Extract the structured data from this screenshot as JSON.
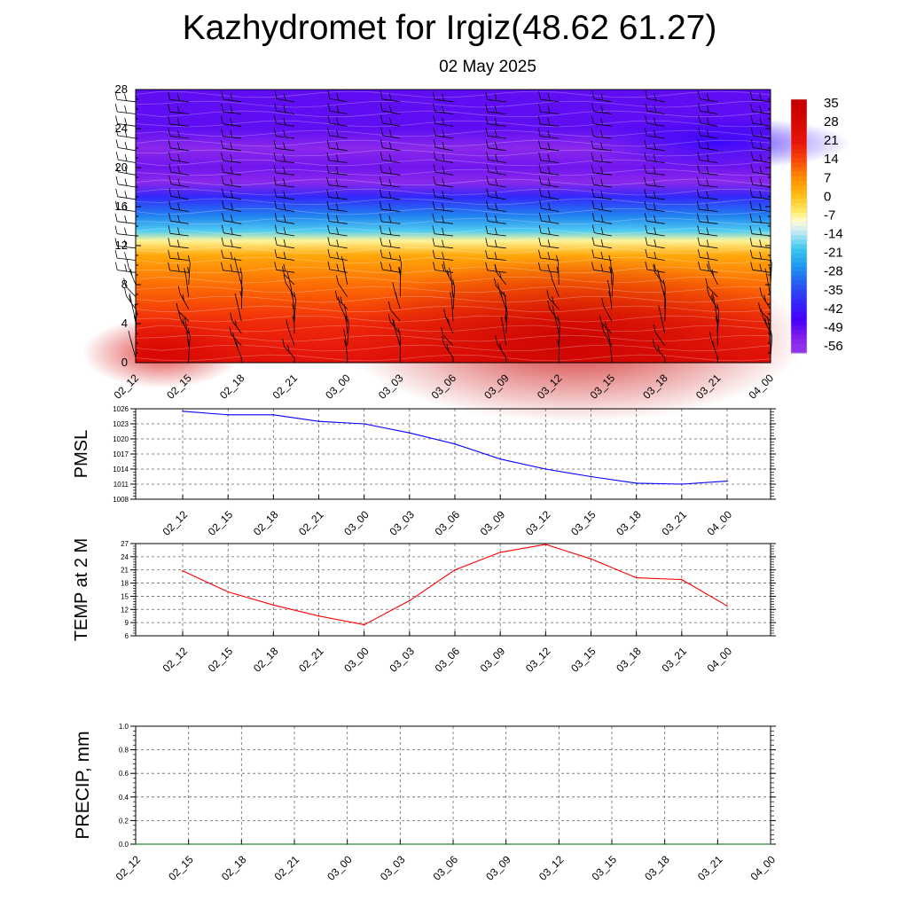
{
  "title": "Kazhydromet for Irgiz(48.62 61.27)",
  "date": "02 May 2025",
  "chart_data": [
    {
      "type": "heatmap",
      "title": "",
      "x_categories": [
        "02_12",
        "02_15",
        "02_18",
        "02_21",
        "03_00",
        "03_03",
        "03_06",
        "03_09",
        "03_12",
        "03_15",
        "03_18",
        "03_21",
        "04_00"
      ],
      "y_ticks": [
        0,
        4,
        8,
        12,
        16,
        20,
        24,
        28
      ],
      "ylim": [
        0,
        28
      ],
      "colorbar_labels": [
        "35",
        "28",
        "21",
        "14",
        "7",
        "0",
        "-7",
        "-14",
        "-21",
        "-28",
        "-35",
        "-42",
        "-49",
        "-56"
      ],
      "temperature_profile": [
        {
          "level": 0,
          "value": 23
        },
        {
          "level": 4,
          "value": 18
        },
        {
          "level": 8,
          "value": 10
        },
        {
          "level": 11,
          "value": 3
        },
        {
          "level": 12.5,
          "value": -8
        },
        {
          "level": 13.5,
          "value": -20
        },
        {
          "level": 15,
          "value": -30
        },
        {
          "level": 17,
          "value": -42
        },
        {
          "level": 18.5,
          "value": -58
        },
        {
          "level": 20,
          "value": -54
        },
        {
          "level": 22,
          "value": -58
        },
        {
          "level": 24,
          "value": -52
        },
        {
          "level": 28,
          "value": -52
        }
      ],
      "colors": {
        "warm_max": "#c80000",
        "neutral": "#fffbc8",
        "cold_max": "#3c00ff",
        "purple": "#8a2be2"
      }
    },
    {
      "type": "line",
      "ylabel": "PMSL",
      "categories": [
        "02_12",
        "02_15",
        "02_18",
        "02_21",
        "03_00",
        "03_03",
        "03_06",
        "03_09",
        "03_12",
        "03_15",
        "03_18",
        "03_21",
        "04_00"
      ],
      "y_ticks": [
        1008,
        1011,
        1014,
        1017,
        1020,
        1023,
        1026
      ],
      "ylim": [
        1008,
        1026
      ],
      "values": [
        1025.5,
        1024.8,
        1024.8,
        1023.5,
        1023.0,
        1021.2,
        1019.0,
        1016.0,
        1014.0,
        1012.5,
        1011.2,
        1011.0,
        1011.6
      ],
      "color": "#0000ff"
    },
    {
      "type": "line",
      "ylabel": "TEMP at 2 M",
      "categories": [
        "02_12",
        "02_15",
        "02_18",
        "02_21",
        "03_00",
        "03_03",
        "03_06",
        "03_09",
        "03_12",
        "03_15",
        "03_18",
        "03_21",
        "04_00"
      ],
      "y_ticks": [
        6,
        9,
        12,
        15,
        18,
        21,
        24,
        27
      ],
      "ylim": [
        6,
        27
      ],
      "values": [
        20.8,
        16.0,
        13.0,
        10.5,
        8.5,
        14.0,
        21.0,
        25.0,
        26.8,
        23.5,
        19.2,
        18.8,
        12.8
      ],
      "color": "#ff0000"
    },
    {
      "type": "line",
      "ylabel": "PRECIP, mm",
      "categories": [
        "02_12",
        "02_15",
        "02_18",
        "02_21",
        "03_00",
        "03_03",
        "03_06",
        "03_09",
        "03_12",
        "03_15",
        "03_18",
        "03_21",
        "04_00"
      ],
      "y_ticks": [
        "0.0",
        "0.2",
        "0.4",
        "0.6",
        "0.8",
        "1.0"
      ],
      "ylim": [
        0,
        1
      ],
      "values": [
        0,
        0,
        0,
        0,
        0,
        0,
        0,
        0,
        0,
        0,
        0,
        0,
        0
      ],
      "color": "#006400"
    }
  ]
}
